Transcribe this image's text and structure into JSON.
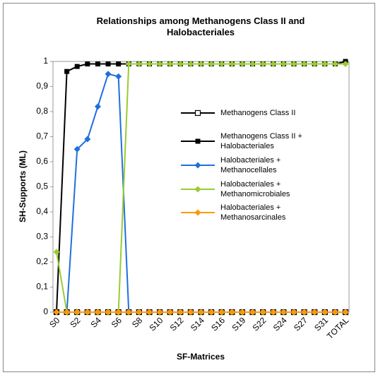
{
  "chart_data": {
    "type": "line",
    "title": "Relationships among Methanogens Class II and Halobacteriales",
    "x_label": "SF-Matrices",
    "y_label": "SH-Supports (ML)",
    "categories": [
      "S0",
      null,
      "S2",
      null,
      "S4",
      null,
      "S6",
      null,
      "S8",
      null,
      "S10",
      null,
      "S12",
      null,
      "S14",
      null,
      "S16",
      null,
      "S19",
      null,
      "S22",
      null,
      "S24",
      null,
      "S27",
      null,
      "S31",
      null,
      "TOTAL"
    ],
    "ylim": [
      0,
      1
    ],
    "yticks": [
      0,
      {
        "value": 0.1,
        "label": "0,1"
      },
      {
        "value": 0.2,
        "label": "0,2"
      },
      {
        "value": 0.3,
        "label": "0,3"
      },
      {
        "value": 0.4,
        "label": "0,4"
      },
      {
        "value": 0.5,
        "label": "0,5"
      },
      {
        "value": 0.6,
        "label": "0,6"
      },
      {
        "value": 0.7,
        "label": "0,7"
      },
      {
        "value": 0.8,
        "label": "0,8"
      },
      {
        "value": 0.9,
        "label": "0,9"
      },
      1
    ],
    "grid": false,
    "series": [
      {
        "name": "Methanogens Class II",
        "color": "#000000",
        "marker": "square-open",
        "values": [
          0,
          0,
          0,
          0,
          0,
          0,
          0,
          0,
          0,
          0,
          0,
          0,
          0,
          0,
          0,
          0,
          0,
          0,
          0,
          0,
          0,
          0,
          0,
          0,
          0,
          0,
          0,
          0,
          0
        ]
      },
      {
        "name": "Methanogens Class II + Halobacteriales",
        "color": "#000000",
        "marker": "square",
        "values": [
          0,
          0.96,
          0.98,
          0.99,
          0.99,
          0.99,
          0.99,
          0.99,
          0.99,
          0.99,
          0.99,
          0.99,
          0.99,
          0.99,
          0.99,
          0.99,
          0.99,
          0.99,
          0.99,
          0.99,
          0.99,
          0.99,
          0.99,
          0.99,
          0.99,
          0.99,
          0.99,
          0.99,
          1
        ]
      },
      {
        "name": "Halobacteriales + Methanocellales",
        "color": "#1f6fe0",
        "marker": "diamond",
        "values": [
          0,
          0,
          0.65,
          0.69,
          0.82,
          0.95,
          0.94,
          0,
          0,
          0,
          0,
          0,
          0,
          0,
          0,
          0,
          0,
          0,
          0,
          0,
          0,
          0,
          0,
          0,
          0,
          0,
          0,
          0,
          0
        ]
      },
      {
        "name": "Halobacteriales + Methanomicrobiales",
        "color": "#99cc33",
        "marker": "diamond",
        "values": [
          0.24,
          0,
          0,
          0,
          0,
          0,
          0,
          0.99,
          0.99,
          0.99,
          0.99,
          0.99,
          0.99,
          0.99,
          0.99,
          0.99,
          0.99,
          0.99,
          0.99,
          0.99,
          0.99,
          0.99,
          0.99,
          0.99,
          0.99,
          0.99,
          0.99,
          0.99,
          0.99
        ]
      },
      {
        "name": "Halobacteriales + Methanosarcinales",
        "color": "#ff9900",
        "marker": "diamond",
        "values": [
          0,
          0,
          0,
          0,
          0,
          0,
          0,
          0,
          0,
          0,
          0,
          0,
          0,
          0,
          0,
          0,
          0,
          0,
          0,
          0,
          0,
          0,
          0,
          0,
          0,
          0,
          0,
          0,
          0
        ]
      }
    ]
  }
}
